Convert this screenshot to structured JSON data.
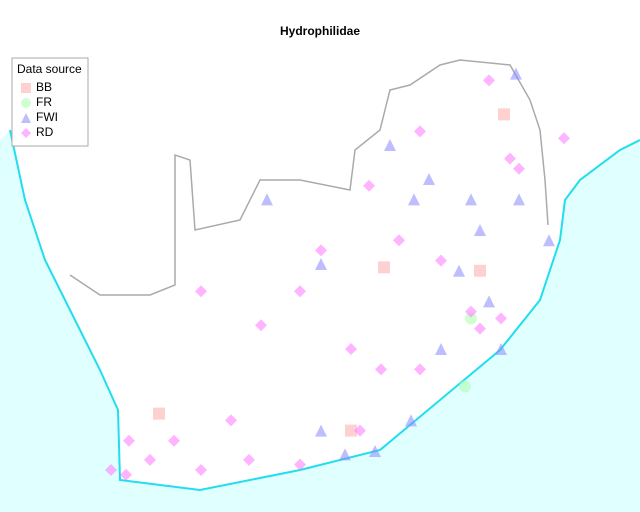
{
  "chart_data": {
    "type": "map",
    "title": "Hydrophilidae",
    "legend_title": "Data source",
    "series": [
      {
        "name": "BB",
        "color": "#ffaaaa",
        "marker": "square",
        "points": [
          [
            31.2,
            -23.8
          ],
          [
            27.2,
            -28.3
          ],
          [
            26.1,
            -33.1
          ],
          [
            19.7,
            -32.6
          ],
          [
            30.4,
            -28.4
          ]
        ]
      },
      {
        "name": "FR",
        "color": "#aaffaa",
        "marker": "circle",
        "points": [
          [
            29.9,
            -31.8
          ],
          [
            30.1,
            -29.8
          ]
        ]
      },
      {
        "name": "FWI",
        "color": "#8888ff",
        "marker": "triangle",
        "points": [
          [
            28.2,
            -26.3
          ],
          [
            28.7,
            -25.7
          ],
          [
            31.1,
            -30.7
          ],
          [
            30.7,
            -29.3
          ],
          [
            30.4,
            -27.2
          ],
          [
            31.7,
            -26.3
          ],
          [
            31.6,
            -22.6
          ],
          [
            27.4,
            -24.7
          ],
          [
            23.3,
            -26.3
          ],
          [
            25.1,
            -33.1
          ],
          [
            25.9,
            -33.8
          ],
          [
            26.9,
            -33.7
          ],
          [
            32.7,
            -27.5
          ],
          [
            29.7,
            -28.4
          ],
          [
            29.1,
            -30.7
          ],
          [
            25.1,
            -28.2
          ],
          [
            28.1,
            -32.8
          ],
          [
            30.1,
            -26.3
          ]
        ]
      },
      {
        "name": "RD",
        "color": "#ff77ff",
        "marker": "diamond",
        "points": [
          [
            18.1,
            -34.26
          ],
          [
            18.7,
            -33.4
          ],
          [
            19.4,
            -33.96
          ],
          [
            21.1,
            -34.26
          ],
          [
            22.7,
            -33.96
          ],
          [
            24.4,
            -34.1
          ],
          [
            26.4,
            -33.1
          ],
          [
            28.4,
            -31.3
          ],
          [
            30.4,
            -30.1
          ],
          [
            31.1,
            -29.8
          ],
          [
            31.4,
            -25.1
          ],
          [
            31.7,
            -25.4
          ],
          [
            26.7,
            -25.9
          ],
          [
            27.7,
            -27.5
          ],
          [
            25.1,
            -27.8
          ],
          [
            24.4,
            -29
          ],
          [
            23.1,
            -30
          ],
          [
            21.1,
            -29
          ],
          [
            28.4,
            -24.3
          ],
          [
            30.7,
            -22.8
          ],
          [
            33.2,
            -24.5
          ],
          [
            26.1,
            -30.7
          ],
          [
            30.1,
            -29.6
          ],
          [
            18.6,
            -34.4
          ],
          [
            20.2,
            -33.4
          ],
          [
            27.1,
            -31.3
          ],
          [
            22.1,
            -32.8
          ],
          [
            29.1,
            -28.1
          ]
        ]
      }
    ]
  }
}
